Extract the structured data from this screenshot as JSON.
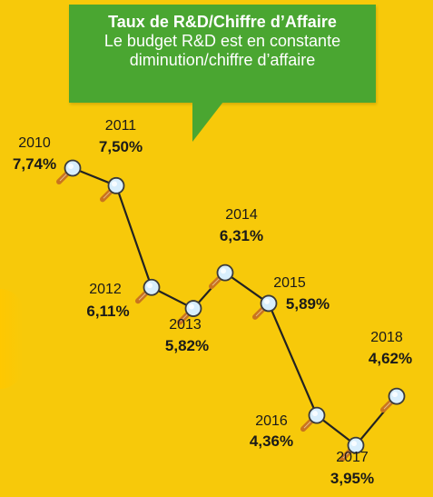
{
  "callout": {
    "title": "Taux de R&D/Chiffre d’Affaire",
    "subtitle": "Le budget R&D est en constante diminution/chiffre d’affaire"
  },
  "colors": {
    "background": "#f7c90a",
    "callout": "#4aa631",
    "line": "#222222",
    "magnifier_handle": "#c9741e",
    "magnifier_lens": "#d8eefc"
  },
  "chart_data": {
    "type": "line",
    "title": "Taux de R&D/Chiffre d’Affaire",
    "subtitle": "Le budget R&D est en constante diminution/chiffre d’affaire",
    "categories": [
      "2010",
      "2011",
      "2012",
      "2013",
      "2014",
      "2015",
      "2016",
      "2017",
      "2018"
    ],
    "values": [
      7.74,
      7.5,
      6.11,
      5.82,
      6.31,
      5.89,
      4.36,
      3.95,
      4.62
    ],
    "value_labels": [
      "7,74%",
      "7,50%",
      "6,11%",
      "5,82%",
      "6,31%",
      "5,89%",
      "4,36%",
      "3,95%",
      "4,62%"
    ],
    "unit": "%",
    "grid": false,
    "legend": "none",
    "marker": "magnifier-icon"
  }
}
